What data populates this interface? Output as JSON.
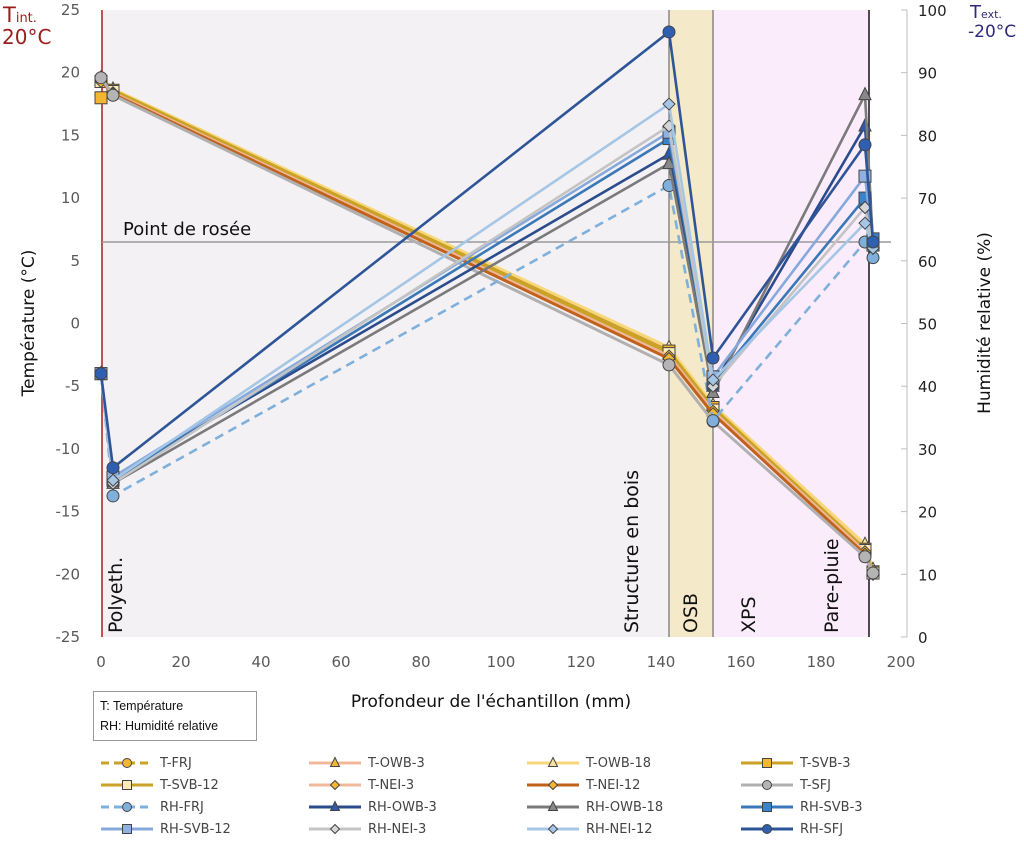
{
  "chart_data": {
    "type": "line",
    "title": "",
    "xlabel": "Profondeur de l'échantillon (mm)",
    "ylabel_left": "Température (°C)",
    "ylabel_right": "Humidité relative (%)",
    "xlim": [
      0,
      200
    ],
    "ylim_left": [
      -25,
      25
    ],
    "ylim_right": [
      0,
      100
    ],
    "x_ticks": [
      "0",
      "20",
      "40",
      "60",
      "80",
      "100",
      "120",
      "140",
      "160",
      "180",
      "200"
    ],
    "y_left_ticks": [
      "25",
      "20",
      "15",
      "10",
      "5",
      "0",
      "-5",
      "-10",
      "-15",
      "-20",
      "-25"
    ],
    "y_right_ticks": [
      "100",
      "90",
      "80",
      "70",
      "60",
      "50",
      "40",
      "30",
      "20",
      "10",
      "0"
    ],
    "corner_labels": {
      "interior": {
        "main": "T",
        "sub": "int.",
        "value": "20°C"
      },
      "exterior": {
        "main": "T",
        "sub": "ext.",
        "value": "-20°C"
      }
    },
    "dew_point": {
      "label": "Point de rosée",
      "rh_value": 63
    },
    "layers": [
      {
        "label": "Polyeth.",
        "x_start": 0,
        "x_end": 1,
        "color": "#f3f1f3"
      },
      {
        "label": "Structure en bois",
        "x_start": 1,
        "x_end": 142,
        "color": "#f3f1f3"
      },
      {
        "label": "OSB",
        "x_start": 142,
        "x_end": 153,
        "color": "#f4e9c8"
      },
      {
        "label": "XPS",
        "x_start": 153,
        "x_end": 192,
        "color": "#fbecfb"
      },
      {
        "label": "Pare-pluie",
        "x_start": 192,
        "x_end": 192,
        "color": "#fbecfb"
      }
    ],
    "note": [
      "T: Température",
      "RH: Humidité relative"
    ],
    "series": [
      {
        "name": "T-FRJ",
        "axis": "left",
        "color": "#c9a227",
        "dash": true,
        "marker": "circle",
        "marker_fill": "#f2b630",
        "x": [
          0,
          3,
          142,
          153,
          191,
          193
        ],
        "values": [
          19.5,
          18.5,
          -2.3,
          -6.8,
          -18.0,
          -19.8
        ]
      },
      {
        "name": "T-OWB-3",
        "axis": "left",
        "color": "#f0b89a",
        "dash": false,
        "marker": "triangle",
        "marker_fill": "#f2b630",
        "x": [
          0,
          3,
          142,
          153,
          191,
          193
        ],
        "values": [
          19.4,
          18.6,
          -2.0,
          -6.6,
          -17.8,
          -19.7
        ]
      },
      {
        "name": "T-OWB-18",
        "axis": "left",
        "color": "#f7d77a",
        "dash": false,
        "marker": "triangle",
        "marker_fill": "#f7e3a0",
        "x": [
          0,
          3,
          142,
          153,
          191,
          193
        ],
        "values": [
          19.6,
          18.7,
          -1.9,
          -6.5,
          -17.6,
          -19.6
        ]
      },
      {
        "name": "T-SVB-3",
        "axis": "left",
        "color": "#c9a227",
        "dash": false,
        "marker": "square",
        "marker_fill": "#f2b630",
        "x": [
          0,
          3,
          142,
          153,
          191,
          193
        ],
        "values": [
          18.0,
          18.6,
          -2.2,
          -6.7,
          -18.0,
          -19.8
        ]
      },
      {
        "name": "T-SVB-12",
        "axis": "left",
        "color": "#c9a227",
        "dash": false,
        "marker": "square",
        "marker_fill": "#fbe9b8",
        "x": [
          0,
          3,
          142,
          153,
          191,
          193
        ],
        "values": [
          19.3,
          18.5,
          -2.4,
          -6.9,
          -18.1,
          -19.9
        ]
      },
      {
        "name": "T-NEI-3",
        "axis": "left",
        "color": "#f0b89a",
        "dash": false,
        "marker": "diamond",
        "marker_fill": "#f2b630",
        "x": [
          0,
          3,
          142,
          153,
          191,
          193
        ],
        "values": [
          19.4,
          18.4,
          -2.6,
          -7.0,
          -18.2,
          -19.9
        ]
      },
      {
        "name": "T-NEI-12",
        "axis": "left",
        "color": "#c0621c",
        "dash": false,
        "marker": "diamond",
        "marker_fill": "#f2b630",
        "x": [
          0,
          3,
          142,
          153,
          191,
          193
        ],
        "values": [
          19.3,
          18.3,
          -2.8,
          -7.2,
          -18.4,
          -20.0
        ]
      },
      {
        "name": "T-SFJ",
        "axis": "left",
        "color": "#b0b0b0",
        "dash": false,
        "marker": "circle",
        "marker_fill": "#b4b4b4",
        "x": [
          0,
          3,
          142,
          153,
          191,
          193
        ],
        "values": [
          19.6,
          18.2,
          -3.3,
          -7.8,
          -18.6,
          -19.9
        ]
      },
      {
        "name": "RH-FRJ",
        "axis": "right",
        "color": "#7fb0dc",
        "dash": true,
        "marker": "circle",
        "marker_fill": "#7fb0dc",
        "x": [
          0,
          3,
          142,
          153,
          191,
          193
        ],
        "values": [
          42,
          22.5,
          72,
          34.5,
          63,
          60.5
        ]
      },
      {
        "name": "RH-OWB-3",
        "axis": "right",
        "color": "#2b4c8c",
        "dash": false,
        "marker": "triangle",
        "marker_fill": "#2b5aa8",
        "x": [
          0,
          3,
          142,
          153,
          191,
          193
        ],
        "values": [
          42,
          25.5,
          77,
          40,
          81.5,
          63
        ]
      },
      {
        "name": "RH-OWB-18",
        "axis": "right",
        "color": "#7a7a7a",
        "dash": false,
        "marker": "triangle",
        "marker_fill": "#888888",
        "x": [
          0,
          3,
          142,
          153,
          191,
          193
        ],
        "values": [
          42,
          24.5,
          75.5,
          39,
          86.5,
          62.5
        ]
      },
      {
        "name": "RH-SVB-3",
        "axis": "right",
        "color": "#3a78b8",
        "dash": false,
        "marker": "square",
        "marker_fill": "#3a82cc",
        "x": [
          0,
          3,
          142,
          153,
          191,
          193
        ],
        "values": [
          42,
          25,
          79.5,
          40.5,
          70,
          63.5
        ]
      },
      {
        "name": "RH-SVB-12",
        "axis": "right",
        "color": "#86a9dc",
        "dash": false,
        "marker": "square",
        "marker_fill": "#8fb0e0",
        "x": [
          0,
          3,
          142,
          153,
          191,
          193
        ],
        "values": [
          42,
          25.5,
          80.5,
          41.5,
          73.5,
          62.5
        ]
      },
      {
        "name": "RH-NEI-3",
        "axis": "right",
        "color": "#c4c4c4",
        "dash": false,
        "marker": "diamond",
        "marker_fill": "#d6d6d6",
        "x": [
          0,
          3,
          142,
          153,
          191,
          193
        ],
        "values": [
          42,
          24.5,
          81.5,
          40,
          68.5,
          62
        ]
      },
      {
        "name": "RH-NEI-12",
        "axis": "right",
        "color": "#a6c6e6",
        "dash": false,
        "marker": "diamond",
        "marker_fill": "#a6c6e6",
        "x": [
          0,
          3,
          142,
          153,
          191,
          193
        ],
        "values": [
          42,
          25,
          85,
          41,
          66,
          62
        ]
      },
      {
        "name": "RH-SFJ",
        "axis": "right",
        "color": "#2e5597",
        "dash": false,
        "marker": "circle",
        "marker_fill": "#2e5fb0",
        "x": [
          0,
          3,
          142,
          153,
          191,
          193
        ],
        "values": [
          42,
          27,
          96.5,
          44.5,
          78.5,
          63
        ]
      }
    ],
    "legend_position": "bottom",
    "grid": false
  }
}
